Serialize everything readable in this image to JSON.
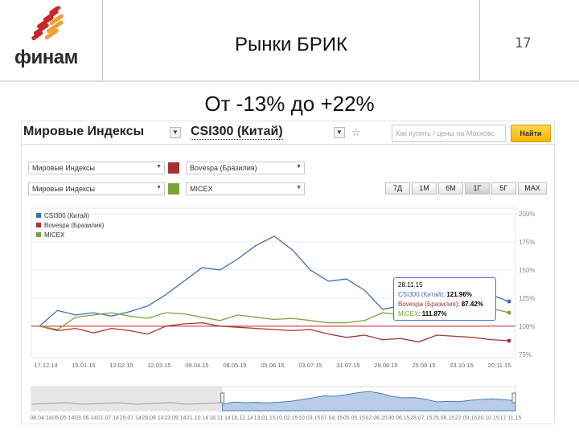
{
  "slide": {
    "logo_text": "финам",
    "title": "Рынки БРИК",
    "page_number": "17",
    "subtitle": "От -13% до +22%"
  },
  "toolbar": {
    "category_dropdown": "Мировые Индексы",
    "main_index_dropdown": "CSI300 (Китай)",
    "search_placeholder": "Как купить / цены на Московс",
    "find_button": "Найти"
  },
  "compare_rows": [
    {
      "category": "Мировые Индексы",
      "index": "Bovespa (Бразилия)",
      "color": "#a83232"
    },
    {
      "category": "Мировые Индексы",
      "index": "MICEX",
      "color": "#7da23a"
    }
  ],
  "range_buttons": [
    {
      "label": "7Д",
      "active": false
    },
    {
      "label": "1М",
      "active": false
    },
    {
      "label": "6М",
      "active": false
    },
    {
      "label": "1Г",
      "active": true
    },
    {
      "label": "5Г",
      "active": false
    },
    {
      "label": "MAX",
      "active": false
    }
  ],
  "tooltip": {
    "date": "28.11.15",
    "lines": [
      {
        "name": "CSI300 (Китай)",
        "value": "121.96%",
        "color": "#3d6fb5"
      },
      {
        "name": "Bovespa (Бразилия)",
        "value": "87.42%",
        "color": "#a83232"
      },
      {
        "name": "MICEX",
        "value": "111.87%",
        "color": "#7da23a"
      }
    ]
  },
  "colors": {
    "csi": "#3d6fb5",
    "bovespa": "#a83232",
    "micex": "#7da23a",
    "baseline": "#cc2222"
  },
  "chart_data": {
    "type": "line",
    "title": "",
    "ylabel": "",
    "xlabel": "",
    "ylim": [
      72,
      205
    ],
    "y_ticks": [
      "200%",
      "175%",
      "150%",
      "125%",
      "100%",
      "75%"
    ],
    "y_tick_values": [
      200,
      175,
      150,
      125,
      100,
      75
    ],
    "x_ticks": [
      "17.12.14",
      "15.01.15",
      "12.02.15",
      "12.03.15",
      "09.04.15",
      "08.05.15",
      "05.06.15",
      "03.07.15",
      "31.07.15",
      "28.08.15",
      "25.09.15",
      "23.10.15",
      "20.11.15"
    ],
    "legend_position": "top-left",
    "legend": [
      "CSI300 (Китай)",
      "Bovespa (Бразилия)",
      "MICEX"
    ],
    "reference_line": 100,
    "x": [
      "17.12.14",
      "31.12.14",
      "15.01.15",
      "29.01.15",
      "12.02.15",
      "26.02.15",
      "12.03.15",
      "26.03.15",
      "09.04.15",
      "23.04.15",
      "08.05.15",
      "22.05.15",
      "05.06.15",
      "12.06.15",
      "19.06.15",
      "03.07.15",
      "17.07.15",
      "31.07.15",
      "14.08.15",
      "28.08.15",
      "11.09.15",
      "25.09.15",
      "09.10.15",
      "23.10.15",
      "06.11.15",
      "20.11.15",
      "28.11.15"
    ],
    "series": [
      {
        "name": "CSI300 (Китай)",
        "color": "#3d6fb5",
        "values": [
          100,
          114,
          110,
          112,
          109,
          113,
          118,
          128,
          140,
          152,
          150,
          160,
          172,
          180,
          168,
          150,
          140,
          142,
          132,
          115,
          118,
          116,
          125,
          130,
          134,
          128,
          122
        ]
      },
      {
        "name": "Bovespa (Бразилия)",
        "color": "#a83232",
        "values": [
          100,
          96,
          98,
          94,
          98,
          96,
          93,
          100,
          102,
          103,
          100,
          99,
          98,
          97,
          96,
          97,
          93,
          90,
          92,
          88,
          89,
          86,
          92,
          91,
          90,
          88,
          87
        ]
      },
      {
        "name": "MICEX",
        "color": "#7da23a",
        "values": [
          100,
          97,
          108,
          110,
          112,
          109,
          107,
          112,
          111,
          108,
          105,
          110,
          108,
          106,
          107,
          105,
          103,
          103,
          105,
          112,
          110,
          107,
          110,
          115,
          114,
          116,
          112
        ]
      }
    ],
    "navigator_ticks": [
      "08.04.14",
      "06.05.14",
      "03.06.14",
      "01.07.14",
      "29.07.14",
      "26.08.14",
      "23.09.14",
      "21.10.14",
      "18.11.14",
      "16.12.14",
      "13.01.15",
      "10.02.15",
      "10.03.15",
      "07.04.15",
      "05.05.15",
      "02.06.15",
      "30.06.15",
      "28.07.15",
      "25.08.15",
      "22.09.15",
      "20.10.15",
      "17.11.15"
    ]
  }
}
